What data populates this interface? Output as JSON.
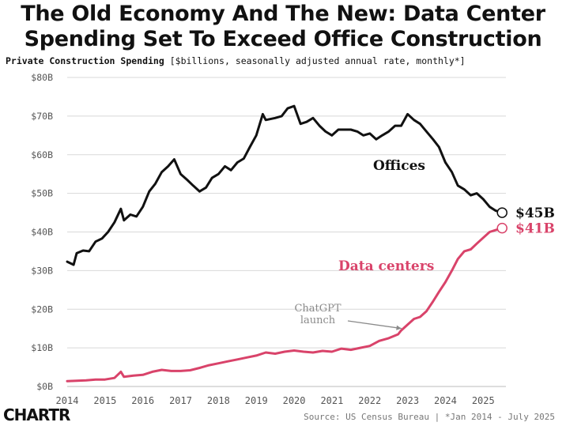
{
  "header": {
    "title_line1": "The Old Economy And The New: Data Center",
    "title_line2": "Spending Set To Exceed Office Construction",
    "subtitle_bold": "Private Construction Spending",
    "subtitle_rest": "[$billions, seasonally adjusted annual rate, monthly*]"
  },
  "footer": {
    "logo": "CHARTR",
    "source": "Source: US Census Bureau | *Jan 2014 - July 2025"
  },
  "colors": {
    "offices": "#111111",
    "data_centers": "#d9436a",
    "annotation": "#8a8a8a",
    "grid": "#d8d8d8",
    "axis_text": "#555555"
  },
  "chart_data": {
    "type": "line",
    "title": "The Old Economy And The New: Data Center Spending Set To Exceed Office Construction",
    "subtitle": "Private Construction Spending [$billions, seasonally adjusted annual rate, monthly*]",
    "xlim": [
      2014,
      2025.6
    ],
    "ylim": [
      0,
      80
    ],
    "x_ticks": [
      "2014",
      "2015",
      "2016",
      "2017",
      "2018",
      "2019",
      "2020",
      "2021",
      "2022",
      "2023",
      "2024",
      "2025"
    ],
    "y_ticks": [
      "$0B",
      "$10B",
      "$20B",
      "$30B",
      "$40B",
      "$50B",
      "$60B",
      "$70B",
      "$80B"
    ],
    "y_tick_values": [
      0,
      10,
      20,
      30,
      40,
      50,
      60,
      70,
      80
    ],
    "grid": "horizontal",
    "series": [
      {
        "name": "Offices",
        "color": "#111111",
        "end_label": "$45B",
        "points": [
          [
            2014.0,
            32.3
          ],
          [
            2014.17,
            31.5
          ],
          [
            2014.25,
            34.5
          ],
          [
            2014.42,
            35.2
          ],
          [
            2014.58,
            35.0
          ],
          [
            2014.75,
            37.5
          ],
          [
            2014.92,
            38.3
          ],
          [
            2015.08,
            40.0
          ],
          [
            2015.25,
            42.5
          ],
          [
            2015.42,
            46.0
          ],
          [
            2015.5,
            43.0
          ],
          [
            2015.67,
            44.5
          ],
          [
            2015.83,
            44.0
          ],
          [
            2016.0,
            46.5
          ],
          [
            2016.17,
            50.5
          ],
          [
            2016.33,
            52.5
          ],
          [
            2016.5,
            55.5
          ],
          [
            2016.67,
            57.0
          ],
          [
            2016.83,
            58.8
          ],
          [
            2017.0,
            55.0
          ],
          [
            2017.17,
            53.5
          ],
          [
            2017.33,
            52.0
          ],
          [
            2017.5,
            50.5
          ],
          [
            2017.67,
            51.5
          ],
          [
            2017.83,
            54.0
          ],
          [
            2018.0,
            55.0
          ],
          [
            2018.17,
            57.0
          ],
          [
            2018.33,
            56.0
          ],
          [
            2018.5,
            58.0
          ],
          [
            2018.67,
            59.0
          ],
          [
            2018.83,
            62.0
          ],
          [
            2019.0,
            65.0
          ],
          [
            2019.17,
            70.5
          ],
          [
            2019.25,
            69.0
          ],
          [
            2019.5,
            69.5
          ],
          [
            2019.67,
            70.0
          ],
          [
            2019.83,
            72.0
          ],
          [
            2020.0,
            72.6
          ],
          [
            2020.17,
            68.0
          ],
          [
            2020.33,
            68.5
          ],
          [
            2020.5,
            69.5
          ],
          [
            2020.67,
            67.5
          ],
          [
            2020.83,
            66.0
          ],
          [
            2021.0,
            65.0
          ],
          [
            2021.17,
            66.5
          ],
          [
            2021.33,
            66.5
          ],
          [
            2021.5,
            66.5
          ],
          [
            2021.67,
            66.0
          ],
          [
            2021.83,
            65.0
          ],
          [
            2022.0,
            65.5
          ],
          [
            2022.17,
            64.0
          ],
          [
            2022.33,
            65.0
          ],
          [
            2022.5,
            66.0
          ],
          [
            2022.67,
            67.5
          ],
          [
            2022.83,
            67.5
          ],
          [
            2023.0,
            70.5
          ],
          [
            2023.17,
            69.0
          ],
          [
            2023.33,
            68.0
          ],
          [
            2023.5,
            66.0
          ],
          [
            2023.67,
            64.0
          ],
          [
            2023.83,
            62.0
          ],
          [
            2024.0,
            58.0
          ],
          [
            2024.17,
            55.5
          ],
          [
            2024.33,
            52.0
          ],
          [
            2024.5,
            51.0
          ],
          [
            2024.67,
            49.5
          ],
          [
            2024.83,
            50.0
          ],
          [
            2025.0,
            48.5
          ],
          [
            2025.17,
            46.5
          ],
          [
            2025.33,
            45.5
          ],
          [
            2025.5,
            45.0
          ]
        ]
      },
      {
        "name": "Data centers",
        "color": "#d9436a",
        "end_label": "$41B",
        "points": [
          [
            2014.0,
            1.4
          ],
          [
            2014.25,
            1.5
          ],
          [
            2014.5,
            1.6
          ],
          [
            2014.75,
            1.8
          ],
          [
            2015.0,
            1.8
          ],
          [
            2015.25,
            2.2
          ],
          [
            2015.42,
            3.8
          ],
          [
            2015.5,
            2.5
          ],
          [
            2015.75,
            2.8
          ],
          [
            2016.0,
            3.0
          ],
          [
            2016.25,
            3.8
          ],
          [
            2016.5,
            4.3
          ],
          [
            2016.75,
            4.0
          ],
          [
            2017.0,
            4.0
          ],
          [
            2017.25,
            4.2
          ],
          [
            2017.5,
            4.8
          ],
          [
            2017.75,
            5.5
          ],
          [
            2018.0,
            6.0
          ],
          [
            2018.25,
            6.5
          ],
          [
            2018.5,
            7.0
          ],
          [
            2018.75,
            7.5
          ],
          [
            2019.0,
            8.0
          ],
          [
            2019.25,
            8.8
          ],
          [
            2019.5,
            8.5
          ],
          [
            2019.75,
            9.0
          ],
          [
            2020.0,
            9.3
          ],
          [
            2020.25,
            9.0
          ],
          [
            2020.5,
            8.8
          ],
          [
            2020.75,
            9.2
          ],
          [
            2021.0,
            9.0
          ],
          [
            2021.25,
            9.8
          ],
          [
            2021.5,
            9.5
          ],
          [
            2021.75,
            10.0
          ],
          [
            2022.0,
            10.5
          ],
          [
            2022.25,
            11.8
          ],
          [
            2022.5,
            12.5
          ],
          [
            2022.75,
            13.5
          ],
          [
            2022.83,
            14.5
          ],
          [
            2023.0,
            16.0
          ],
          [
            2023.17,
            17.5
          ],
          [
            2023.33,
            18.0
          ],
          [
            2023.5,
            19.5
          ],
          [
            2023.67,
            22.0
          ],
          [
            2023.83,
            24.5
          ],
          [
            2024.0,
            27.0
          ],
          [
            2024.17,
            30.0
          ],
          [
            2024.33,
            33.0
          ],
          [
            2024.5,
            35.0
          ],
          [
            2024.67,
            35.5
          ],
          [
            2024.83,
            37.0
          ],
          [
            2025.0,
            38.5
          ],
          [
            2025.17,
            40.0
          ],
          [
            2025.33,
            40.5
          ],
          [
            2025.5,
            41.0
          ]
        ]
      }
    ],
    "annotations": [
      {
        "text_line1": "ChatGPT",
        "text_line2": "launch",
        "x": 2022.9,
        "y": 14.0
      }
    ]
  }
}
